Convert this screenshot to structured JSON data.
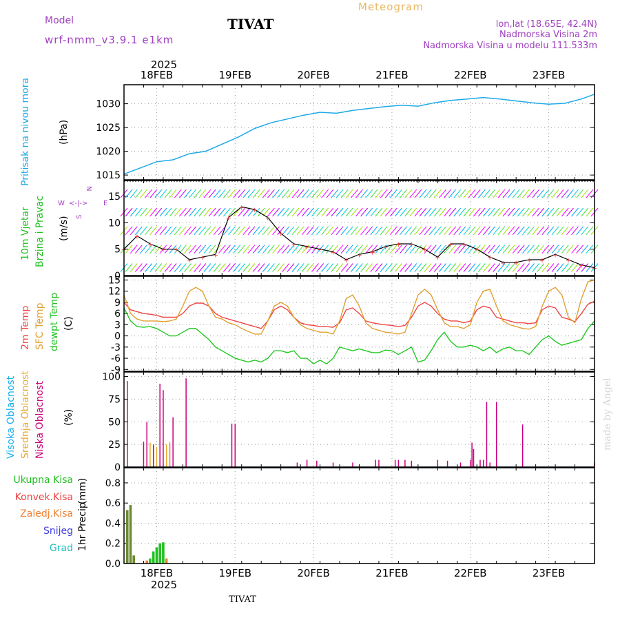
{
  "header": {
    "model_label": "Model",
    "model_name": "wrf-nmm_v3.9.1 e1km",
    "station": "TIVAT",
    "subtitle": "Meteogram",
    "lonlat": "lon,lat (18.65E, 42.4N)",
    "elevation": "Nadmorska Visina 2m",
    "model_elevation": "Nadmorska Visina u modelu 111.533m",
    "footer_station": "TIVAT",
    "credit": "made by Angel"
  },
  "time_axis": {
    "year": "2025",
    "day_labels": [
      "18FEB",
      "19FEB",
      "20FEB",
      "21FEB",
      "22FEB",
      "23FEB"
    ],
    "start_hour": "17FEB 14:00",
    "hours_total": 144
  },
  "colors": {
    "pressure": "#1da9e6",
    "temp2m": "#f04545",
    "sfc": "#e0a030",
    "dewpt": "#20c820",
    "visoka": "#1ab0f0",
    "srednja": "#e8a830",
    "niska": "#c8007a",
    "ukupna": "#20c020",
    "konvek": "#f04040",
    "zaledj": "#f08030",
    "snijeg": "#4040e0",
    "grad": "#20c0c0",
    "model": "#a040c0",
    "subtitle": "#e8b860"
  },
  "chart_data": [
    {
      "type": "line",
      "panel": "pressure",
      "ylabel": "Pritisak na nivou mora",
      "unit": "(hPa)",
      "yticks": [
        1015,
        1020,
        1025,
        1030
      ],
      "ylim": [
        1014,
        1034
      ],
      "x_hours": [
        0,
        5,
        10,
        15,
        20,
        25,
        30,
        35,
        40,
        45,
        50,
        55,
        60,
        65,
        70,
        75,
        80,
        85,
        90,
        95,
        100,
        105,
        110,
        115,
        120,
        125,
        130,
        135,
        140,
        144
      ],
      "values": [
        1015.2,
        1016.5,
        1017.8,
        1018.2,
        1019.5,
        1020.0,
        1021.5,
        1023.0,
        1024.8,
        1026.0,
        1026.8,
        1027.6,
        1028.2,
        1028.0,
        1028.6,
        1029.0,
        1029.4,
        1029.7,
        1029.5,
        1030.2,
        1030.7,
        1031.0,
        1031.3,
        1031.0,
        1030.6,
        1030.2,
        1029.9,
        1030.1,
        1031.0,
        1032.0
      ],
      "grid": true
    },
    {
      "type": "line",
      "panel": "wind",
      "ylabel": "10m Vjetar",
      "ylabel2": "Brzina i Pravac",
      "unit": "(m/s)",
      "compass": {
        "w": "W",
        "e": "E",
        "n": "N",
        "s": "S"
      },
      "yticks": [
        0,
        5,
        10,
        15
      ],
      "ylim": [
        0,
        18
      ],
      "x_hours": [
        0,
        4,
        8,
        12,
        16,
        20,
        24,
        28,
        32,
        36,
        40,
        44,
        48,
        52,
        56,
        60,
        64,
        68,
        72,
        76,
        80,
        84,
        88,
        92,
        96,
        100,
        104,
        108,
        112,
        116,
        120,
        124,
        128,
        132,
        136,
        140,
        144
      ],
      "values": [
        5,
        7.5,
        6,
        5,
        5,
        3,
        3.5,
        4,
        11,
        13,
        12.5,
        11,
        8,
        6,
        5.5,
        5,
        4.5,
        3,
        4,
        4.5,
        5.5,
        6,
        6,
        5,
        3.5,
        6,
        6,
        5,
        3.5,
        2.5,
        2.5,
        3,
        3,
        4,
        3,
        2,
        1.5
      ],
      "grid": true
    },
    {
      "type": "line",
      "panel": "temperature",
      "ylabel": "2m Temp",
      "ylabel2": "SFC Temp",
      "ylabel3": "dewpt Temp",
      "unit": "(C)",
      "yticks": [
        -9,
        -6,
        -3,
        0,
        3,
        6,
        9,
        12,
        15
      ],
      "ylim": [
        -9.5,
        16
      ],
      "x_hours": [
        0,
        2,
        4,
        6,
        8,
        10,
        12,
        14,
        16,
        18,
        20,
        22,
        24,
        26,
        28,
        30,
        32,
        34,
        36,
        38,
        40,
        42,
        44,
        46,
        48,
        50,
        52,
        54,
        56,
        58,
        60,
        62,
        64,
        66,
        68,
        70,
        72,
        74,
        76,
        78,
        80,
        82,
        84,
        86,
        88,
        90,
        92,
        94,
        96,
        98,
        100,
        102,
        104,
        106,
        108,
        110,
        112,
        114,
        116,
        118,
        120,
        122,
        124,
        126,
        128,
        130,
        132,
        134,
        136,
        138,
        140,
        142,
        144
      ],
      "series": [
        {
          "name": "2m Temp",
          "values": [
            9,
            7,
            6.5,
            6,
            5.8,
            5.5,
            5,
            5,
            5,
            6,
            8,
            8.8,
            8.8,
            8,
            6,
            5,
            4.5,
            4,
            3.5,
            3,
            2.5,
            2,
            4,
            7,
            8,
            7,
            5,
            3.5,
            3,
            2.8,
            2.5,
            2.5,
            2.3,
            3.5,
            7,
            7.5,
            6,
            4,
            3.5,
            3.2,
            3,
            2.8,
            2.5,
            2.8,
            5,
            8,
            9,
            8,
            6,
            4.5,
            4,
            4,
            3.5,
            4,
            7,
            8,
            7.5,
            5,
            4.5,
            4,
            3.5,
            3.5,
            3.3,
            3.5,
            7,
            8,
            7.5,
            5,
            4.5,
            3.8,
            6,
            8.5,
            9.3
          ]
        },
        {
          "name": "SFC Temp",
          "values": [
            11,
            6,
            4.5,
            4,
            4,
            4,
            3.8,
            4,
            4.5,
            8,
            12,
            13,
            12,
            8,
            5,
            4.5,
            3.5,
            3,
            2,
            1.2,
            0.5,
            0.5,
            4,
            8,
            9,
            8,
            5,
            3,
            2,
            1.5,
            1,
            1,
            0.5,
            4,
            10,
            11,
            8,
            3.5,
            2,
            1.5,
            1,
            0.8,
            0.5,
            1,
            6,
            11,
            12.5,
            11,
            7,
            3.5,
            2.5,
            2.5,
            2,
            3,
            9,
            12,
            12.5,
            8,
            4,
            3,
            2.5,
            2,
            1.8,
            2.5,
            8,
            12,
            13,
            11,
            5,
            3.5,
            10,
            14.5,
            15
          ]
        },
        {
          "name": "dewpt Temp",
          "values": [
            7.5,
            4,
            2.5,
            2.3,
            2.5,
            2,
            1,
            0,
            0,
            1,
            2,
            2,
            0.5,
            -1,
            -3,
            -4,
            -5,
            -6,
            -6.5,
            -7,
            -6.5,
            -7,
            -6,
            -4,
            -4,
            -4.5,
            -4,
            -6,
            -6,
            -7.5,
            -6.5,
            -7.5,
            -6,
            -3,
            -3.5,
            -4,
            -3.5,
            -4,
            -4.5,
            -4.5,
            -3.8,
            -4,
            -5,
            -4,
            -3,
            -7,
            -6.5,
            -4,
            -1,
            1,
            -1.5,
            -3,
            -3,
            -2.5,
            -3,
            -4,
            -3,
            -4.5,
            -3.5,
            -3,
            -4,
            -4,
            -5,
            -3,
            -1,
            0,
            -1.5,
            -2.5,
            -2,
            -1.5,
            -1,
            2,
            4
          ]
        }
      ],
      "grid": true
    },
    {
      "type": "bar",
      "panel": "cloud",
      "ylabel": "Visoka Oblacnost",
      "ylabel2": "Srednja Oblacnost",
      "ylabel3": "Niska Oblacnost",
      "unit": "(%)",
      "yticks": [
        0,
        25,
        50,
        75,
        100
      ],
      "ylim": [
        0,
        105
      ],
      "series": [
        {
          "name": "Niska Oblacnost",
          "x_hours": [
            1,
            6,
            7,
            9,
            11,
            12,
            14,
            15,
            19,
            33,
            34,
            53,
            56,
            59,
            64,
            70,
            77,
            78,
            83,
            84,
            86,
            88,
            96,
            99,
            103,
            106,
            106.5,
            107,
            109,
            110,
            111,
            112,
            114,
            122,
            144
          ],
          "values": [
            95,
            28,
            50,
            25,
            92,
            85,
            25,
            55,
            98,
            48,
            48,
            5,
            8,
            7,
            5,
            5,
            8,
            8,
            8,
            8,
            8,
            7,
            8,
            7,
            5,
            8,
            27,
            20,
            8,
            8,
            72,
            5,
            72,
            47,
            5
          ]
        },
        {
          "name": "Srednja Oblacnost",
          "x_hours": [
            8,
            10,
            13,
            14
          ],
          "values": [
            27,
            22,
            25,
            28
          ]
        },
        {
          "name": "Visoka Oblacnost",
          "x_hours": [],
          "values": []
        }
      ],
      "grid": true
    },
    {
      "type": "bar",
      "panel": "precip",
      "ylabel": "1hr Precip",
      "unit": "(mm)",
      "legend": [
        "Ukupna Kisa",
        "Konvek.Kisa",
        "Zaledj.Kisa",
        "Snijeg",
        "Grad"
      ],
      "yticks": [
        0,
        0.2,
        0.4,
        0.6,
        0.8
      ],
      "ylim": [
        0,
        0.95
      ],
      "series": [
        {
          "name": "Ukupna Kisa",
          "x_hours": [
            1,
            2,
            3,
            8,
            9,
            10,
            11,
            12
          ],
          "values": [
            0.53,
            0.58,
            0.08,
            0.05,
            0.12,
            0.16,
            0.2,
            0.21
          ]
        },
        {
          "name": "Zaledj.Kisa",
          "x_hours": [
            7,
            13
          ],
          "values": [
            0.03,
            0.05
          ]
        }
      ],
      "grid": true
    }
  ]
}
